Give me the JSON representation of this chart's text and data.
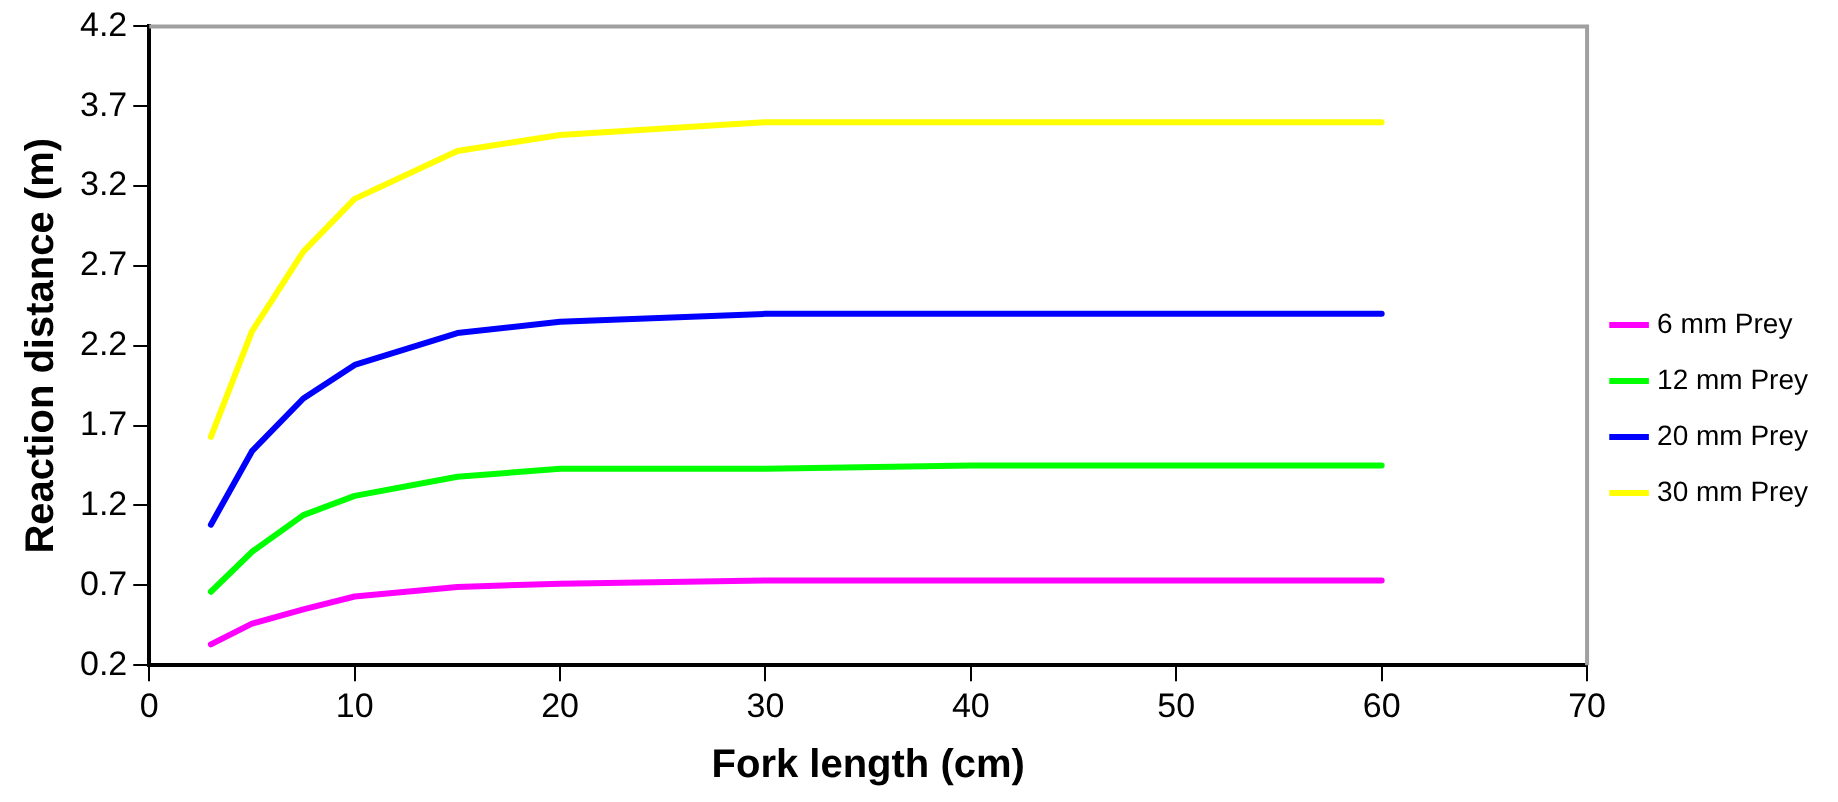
{
  "chart_data": {
    "type": "line",
    "xlabel": "Fork length (cm)",
    "ylabel": "Reaction distance (m)",
    "x": [
      3,
      5,
      7.5,
      10,
      15,
      20,
      30,
      40,
      50,
      60
    ],
    "series": [
      {
        "name": "6 mm Prey",
        "color": "#ff00ff",
        "values": [
          0.33,
          0.46,
          0.55,
          0.63,
          0.69,
          0.71,
          0.73,
          0.73,
          0.73,
          0.73
        ]
      },
      {
        "name": "12 mm Prey",
        "color": "#00ff00",
        "values": [
          0.66,
          0.91,
          1.14,
          1.26,
          1.38,
          1.43,
          1.43,
          1.45,
          1.45,
          1.45
        ]
      },
      {
        "name": "20 mm Prey",
        "color": "#0000ff",
        "values": [
          1.08,
          1.54,
          1.87,
          2.08,
          2.28,
          2.35,
          2.4,
          2.4,
          2.4,
          2.4
        ]
      },
      {
        "name": "30 mm Prey",
        "color": "#ffff00",
        "values": [
          1.63,
          2.29,
          2.79,
          3.12,
          3.42,
          3.52,
          3.6,
          3.6,
          3.6,
          3.6
        ]
      }
    ],
    "xlim": [
      0,
      70
    ],
    "xticks": [
      0,
      10,
      20,
      30,
      40,
      50,
      60,
      70
    ],
    "ylim": [
      0.2,
      4.2
    ],
    "yticks": [
      0.2,
      0.7,
      1.2,
      1.7,
      2.2,
      2.7,
      3.2,
      3.7,
      4.2
    ],
    "grid": false,
    "legend": "right",
    "marker": "none",
    "line_style": "solid"
  }
}
